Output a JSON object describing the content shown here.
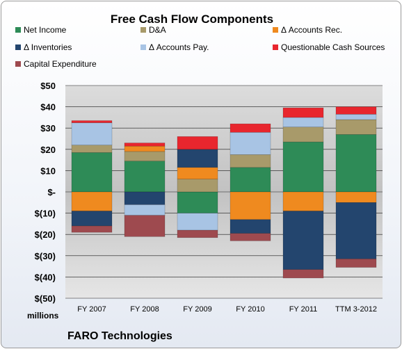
{
  "chart_data": {
    "type": "bar",
    "stacked": true,
    "title": "Free Cash Flow Components",
    "y_unit_label": "millions",
    "company": "FARO Technologies",
    "categories": [
      "FY 2007",
      "FY 2008",
      "FY 2009",
      "FY 2010",
      "FY 2011",
      "TTM 3-2012"
    ],
    "ylim": [
      -50,
      50
    ],
    "yticks": [
      50,
      40,
      30,
      20,
      10,
      0,
      -10,
      -20,
      -30,
      -40,
      -50
    ],
    "ytick_labels": [
      "$50",
      "$40",
      "$30",
      "$20",
      "$10",
      "$-",
      "$(10)",
      "$(20)",
      "$(30)",
      "$(40)",
      "$(50)"
    ],
    "grid": true,
    "legend": "top",
    "series": [
      {
        "name": "Net Income",
        "color": "#2e8b57",
        "values": [
          18.5,
          14.5,
          -10.0,
          11.5,
          23.5,
          27.0
        ]
      },
      {
        "name": "D&A",
        "color": "#a89a6a",
        "values": [
          3.5,
          4.5,
          6.0,
          6.0,
          7.0,
          7.0
        ]
      },
      {
        "name": "Δ Accounts Rec.",
        "color": "#ef8a1f",
        "values": [
          -9.0,
          2.5,
          5.5,
          -13.0,
          -9.0,
          -5.0
        ]
      },
      {
        "name": "Δ Inventories",
        "color": "#23456e",
        "values": [
          -7.0,
          -6.0,
          8.5,
          -6.5,
          -27.5,
          -26.5
        ]
      },
      {
        "name": "Δ Accounts Pay.",
        "color": "#a8c4e4",
        "values": [
          10.5,
          -5.0,
          -8.0,
          10.5,
          4.5,
          2.5
        ]
      },
      {
        "name": "Questionable Cash Sources",
        "color": "#e8262e",
        "values": [
          1.0,
          1.5,
          6.0,
          4.0,
          4.5,
          3.5
        ]
      },
      {
        "name": "Capital Expenditure",
        "color": "#9e4a4f",
        "values": [
          -3.0,
          -10.0,
          -3.5,
          -3.5,
          -4.0,
          -4.0
        ]
      }
    ]
  }
}
